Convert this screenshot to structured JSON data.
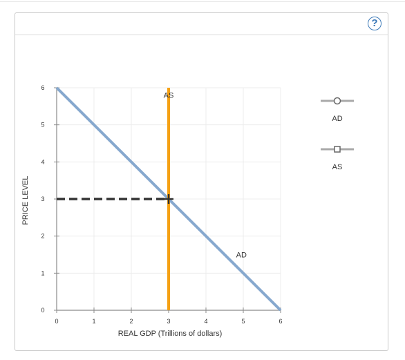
{
  "help": {
    "label": "?"
  },
  "chart_data": {
    "type": "line",
    "xlabel": "REAL GDP (Trillions of dollars)",
    "ylabel": "PRICE LEVEL",
    "xlim": [
      0,
      6
    ],
    "ylim": [
      0,
      6
    ],
    "xticks": [
      0,
      1,
      2,
      3,
      4,
      5,
      6
    ],
    "yticks": [
      0,
      1,
      2,
      3,
      4,
      5,
      6
    ],
    "grid": true,
    "series": [
      {
        "name": "AD",
        "points": [
          [
            0,
            6
          ],
          [
            6,
            0
          ]
        ],
        "color": "#86a8ce",
        "label": "AD",
        "label_at": [
          4.95,
          1.5
        ]
      },
      {
        "name": "AS",
        "points": [
          [
            3,
            0
          ],
          [
            3,
            6
          ]
        ],
        "color": "#f5a114",
        "label": "AS",
        "label_at": [
          3,
          5.8
        ]
      }
    ],
    "equilibrium": {
      "x": 3,
      "y": 3
    },
    "dashed_guide": {
      "from": [
        0,
        3
      ],
      "to": [
        3,
        3
      ],
      "color": "#333333"
    }
  },
  "legend": [
    {
      "label": "AD",
      "marker": "circle"
    },
    {
      "label": "AS",
      "marker": "square"
    }
  ]
}
